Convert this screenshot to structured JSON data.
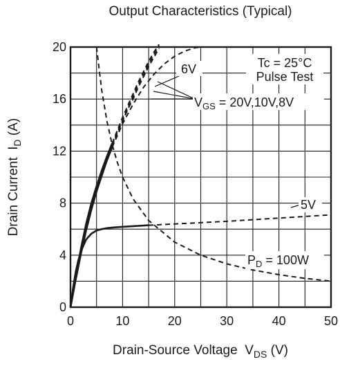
{
  "chart_data": {
    "type": "line",
    "title": "Output Characteristics (Typical)",
    "xlabel": {
      "main": "Drain-Source Voltage  V",
      "sub": "DS",
      "unit": " (V)"
    },
    "ylabel": {
      "main": "Drain Current  I",
      "sub": "D",
      "unit": " (A)"
    },
    "xlim": [
      0,
      50
    ],
    "ylim": [
      0,
      20
    ],
    "xticks": [
      0,
      10,
      20,
      30,
      40,
      50
    ],
    "yticks": [
      0,
      4,
      8,
      12,
      16,
      20
    ],
    "grid": true,
    "annotations": {
      "tc": "Tc = 25°C",
      "pulse": "Pulse Test",
      "label_6v": "6V",
      "label_5v": "5V",
      "vgs_main": "V",
      "vgs_sub": "GS",
      "vgs_rest": " = 20V,10V,8V",
      "pd_main": "P",
      "pd_sub": "D",
      "pd_rest": " = 100W"
    },
    "series": [
      {
        "name": "20V",
        "style": "solid-then-dashed",
        "solid_until_x": 8,
        "x": [
          0,
          1,
          2,
          3,
          4,
          5,
          6,
          7,
          8,
          9,
          10,
          11,
          12,
          13,
          14,
          15,
          16,
          17
        ],
        "y": [
          0,
          2.3,
          4.5,
          6.4,
          8.0,
          9.3,
          10.5,
          11.6,
          12.6,
          13.6,
          14.6,
          15.5,
          16.4,
          17.3,
          18.1,
          18.9,
          19.6,
          20.2
        ]
      },
      {
        "name": "10V",
        "style": "solid-then-dashed",
        "solid_until_x": 8,
        "x": [
          0,
          1,
          2,
          3,
          4,
          5,
          6,
          7,
          8,
          9,
          10,
          11,
          12,
          13,
          14,
          15,
          16,
          17
        ],
        "y": [
          0,
          2.25,
          4.4,
          6.3,
          7.9,
          9.2,
          10.4,
          11.5,
          12.5,
          13.5,
          14.4,
          15.3,
          16.2,
          17.1,
          17.9,
          18.7,
          19.4,
          20.1
        ]
      },
      {
        "name": "8V",
        "style": "solid-then-dashed",
        "solid_until_x": 8,
        "x": [
          0,
          1,
          2,
          3,
          4,
          5,
          6,
          7,
          8,
          9,
          10,
          11,
          12,
          13,
          14,
          15,
          16,
          17
        ],
        "y": [
          0,
          2.2,
          4.3,
          6.2,
          7.8,
          9.1,
          10.3,
          11.4,
          12.4,
          13.4,
          14.3,
          15.2,
          16.0,
          16.9,
          17.7,
          18.5,
          19.2,
          19.9
        ]
      },
      {
        "name": "6V",
        "style": "solid-then-dashed",
        "solid_until_x": 8,
        "x": [
          0,
          1,
          2,
          3,
          4,
          5,
          6,
          7,
          8,
          10,
          12,
          14,
          16,
          18,
          20,
          22,
          24,
          25
        ],
        "y": [
          0,
          2.1,
          4.1,
          5.9,
          7.5,
          8.9,
          10.1,
          11.3,
          12.3,
          14.1,
          15.6,
          16.9,
          17.9,
          18.7,
          19.3,
          19.7,
          19.95,
          20.0
        ]
      },
      {
        "name": "5V",
        "style": "solid-then-dashed",
        "solid_until_x": 15,
        "x": [
          0,
          0.5,
          1,
          1.5,
          2,
          3,
          4,
          5,
          6,
          7,
          8,
          10,
          15,
          20,
          30,
          40,
          50
        ],
        "y": [
          0,
          1.5,
          2.7,
          3.6,
          4.3,
          5.2,
          5.65,
          5.9,
          6.0,
          6.08,
          6.12,
          6.18,
          6.3,
          6.4,
          6.6,
          6.85,
          7.1
        ]
      },
      {
        "name": "P_D = 100W",
        "style": "dashed",
        "x": [
          5,
          6,
          7,
          8,
          9,
          10,
          12,
          15,
          20,
          25,
          30,
          35,
          40,
          45,
          50
        ],
        "y": [
          20.0,
          16.67,
          14.29,
          12.5,
          11.11,
          10.0,
          8.33,
          6.67,
          5.0,
          4.0,
          3.33,
          2.86,
          2.5,
          2.22,
          2.0
        ]
      }
    ]
  }
}
